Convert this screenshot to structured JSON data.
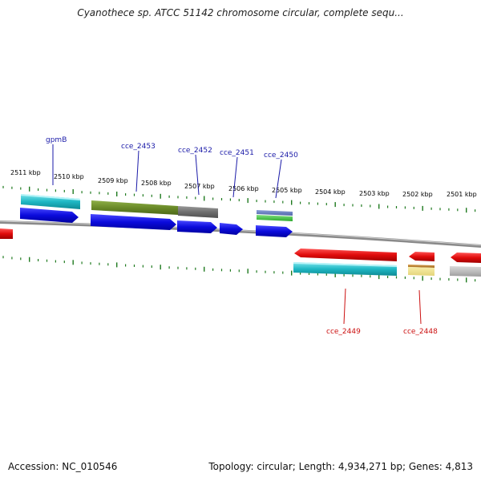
{
  "title": "Cyanothece sp. ATCC 51142 chromosome circular, complete sequ...",
  "footer": {
    "accession": "Accession: NC_010546",
    "summary": "Topology: circular; Length: 4,934,271 bp; Genes: 4,813"
  },
  "ruler_labels": [
    "2511 kbp",
    "2510 kbp",
    "2509 kbp",
    "2508 kbp",
    "2507 kbp",
    "2506 kbp",
    "2505 kbp",
    "2504 kbp",
    "2503 kbp",
    "2502 kbp",
    "2501 kbp"
  ],
  "gene_labels_top": [
    "gpmB",
    "cce_2453",
    "cce_2452",
    "cce_2451",
    "cce_2450"
  ],
  "gene_labels_bottom": [
    "cce_2449",
    "cce_2448"
  ],
  "colors": {
    "label_top": "#1a1aa8",
    "label_bottom": "#cc1111",
    "tick": "#1f7a1f",
    "backbone": "#8a8a8a",
    "forward_gene": "#0b0bdc",
    "reverse_gene": "#e00b0b",
    "cyan_feature": "#1fb8c4",
    "olive_feature": "#6a8a28",
    "gray_feature": "#6e6e6e",
    "green_feature": "#3ec43e",
    "yellow_feature": "#ede08c"
  }
}
